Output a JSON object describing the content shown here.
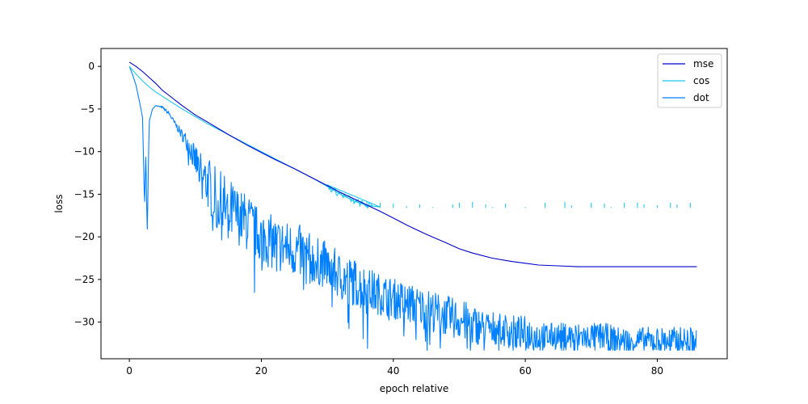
{
  "chart_data": {
    "type": "line",
    "title": "",
    "xlabel": "epoch relative",
    "ylabel": "loss",
    "xlim": [
      -4.3,
      90.6
    ],
    "ylim": [
      -34.3,
      2.1
    ],
    "xticks": [
      0,
      20,
      40,
      60,
      80
    ],
    "yticks": [
      0,
      -5,
      -10,
      -15,
      -20,
      -25,
      -30
    ],
    "grid": false,
    "legend_position": "top-right",
    "series": [
      {
        "name": "mse",
        "color": "#0000cc",
        "x": [
          0,
          1,
          2,
          3,
          4,
          5,
          6,
          8,
          10,
          12,
          15,
          18,
          20,
          22,
          25,
          28,
          30,
          32,
          35,
          38,
          40,
          42,
          45,
          48,
          50,
          52,
          55,
          58,
          60,
          62,
          65,
          68,
          70,
          72,
          75,
          78,
          80,
          82,
          84,
          86
        ],
        "y": [
          0.5,
          0.0,
          -0.6,
          -1.3,
          -2.0,
          -2.8,
          -3.4,
          -4.6,
          -5.7,
          -6.6,
          -8.0,
          -9.3,
          -10.1,
          -10.9,
          -12.0,
          -13.2,
          -14.0,
          -14.8,
          -15.9,
          -17.0,
          -17.8,
          -18.6,
          -19.7,
          -20.7,
          -21.4,
          -21.9,
          -22.5,
          -22.9,
          -23.1,
          -23.3,
          -23.4,
          -23.5,
          -23.5,
          -23.5,
          -23.5,
          -23.5,
          -23.5,
          -23.5,
          -23.5,
          -23.5
        ]
      },
      {
        "name": "cos",
        "color": "#1ec8f0",
        "x": [
          0,
          1,
          2,
          3,
          4,
          5,
          6,
          8,
          10,
          12,
          15,
          18,
          20,
          22,
          25,
          28,
          30,
          32,
          34,
          36,
          38
        ],
        "y": [
          0.0,
          -0.9,
          -1.7,
          -2.4,
          -3.0,
          -3.5,
          -4.0,
          -5.0,
          -5.9,
          -6.8,
          -8.0,
          -9.2,
          -10.0,
          -10.8,
          -12.0,
          -13.2,
          -14.1,
          -15.0,
          -15.8,
          -16.3,
          -16.5
        ],
        "x_spikes": [
          36,
          38,
          40,
          42,
          44,
          46,
          49,
          50,
          52,
          54,
          55,
          57,
          60,
          63,
          66,
          67,
          70,
          72,
          73,
          75,
          77,
          78,
          80,
          82,
          83,
          85
        ],
        "y_spikes": [
          -15.8,
          -16.0,
          -16.1,
          -16.4,
          -16.2,
          -16.5,
          -16.2,
          -16.0,
          -15.9,
          -16.2,
          -16.5,
          -16.1,
          -16.5,
          -16.0,
          -15.9,
          -16.3,
          -16.0,
          -16.1,
          -16.5,
          -16.0,
          -16.0,
          -16.2,
          -16.3,
          -16.0,
          -16.2,
          -16.0
        ]
      },
      {
        "name": "dot",
        "color": "#0080ff",
        "x": [
          0,
          0.5,
          1,
          1.5,
          2.0,
          2.3,
          2.5,
          2.7,
          3.0,
          3.5,
          4.0,
          5.0,
          6.0,
          7.0,
          8.0,
          9.0,
          10.0,
          11.0,
          12.0,
          13.0,
          14.0,
          15.0,
          16.0,
          17.0,
          18.0,
          19.0,
          20.0,
          22.0,
          24.0,
          26.0,
          28.0,
          30.0,
          32.0,
          34.0,
          36.0,
          38.0,
          40.0,
          42.0,
          44.0,
          46.0,
          48.0,
          50.0,
          52.0,
          54.0,
          56.0,
          58.0,
          60.0,
          62.0,
          64.0,
          66.0,
          68.0,
          70.0,
          72.0,
          74.0,
          76.0,
          78.0,
          80.0,
          82.0,
          84.0,
          86.0
        ],
        "y": [
          0.0,
          -1.0,
          -2.2,
          -4.0,
          -6.0,
          -16.5,
          -10.0,
          -20.0,
          -6.5,
          -5.0,
          -4.6,
          -4.8,
          -5.5,
          -6.8,
          -8.0,
          -9.0,
          -10.8,
          -12.5,
          -13.5,
          -15.0,
          -16.0,
          -16.5,
          -17.0,
          -17.5,
          -18.0,
          -19.0,
          -19.5,
          -20.5,
          -21.0,
          -21.5,
          -22.5,
          -23.0,
          -24.5,
          -25.0,
          -26.0,
          -26.5,
          -27.0,
          -27.5,
          -28.0,
          -28.5,
          -29.0,
          -29.5,
          -30.0,
          -30.5,
          -30.5,
          -31.0,
          -31.0,
          -31.5,
          -31.5,
          -31.5,
          -31.5,
          -31.5,
          -31.5,
          -32.0,
          -32.0,
          -32.0,
          -32.0,
          -32.0,
          -32.0,
          -32.0
        ],
        "noise_amplitude": [
          0,
          0,
          0,
          0,
          0,
          0,
          0,
          0,
          0,
          0,
          0,
          0.2,
          0.3,
          0.4,
          0.8,
          1.5,
          2.5,
          3.5,
          4.0,
          4.5,
          5.0,
          5.0,
          4.5,
          4.0,
          4.5,
          4.0,
          4.0,
          4.0,
          4.0,
          4.0,
          3.5,
          3.5,
          3.5,
          3.5,
          3.5,
          3.0,
          3.0,
          3.0,
          3.0,
          3.0,
          3.0,
          3.0,
          3.0,
          2.5,
          2.5,
          2.5,
          2.5,
          2.5,
          2.0,
          2.0,
          2.0,
          2.0,
          2.0,
          2.0,
          2.0,
          2.0,
          2.0,
          2.0,
          2.0,
          2.0
        ]
      }
    ]
  }
}
